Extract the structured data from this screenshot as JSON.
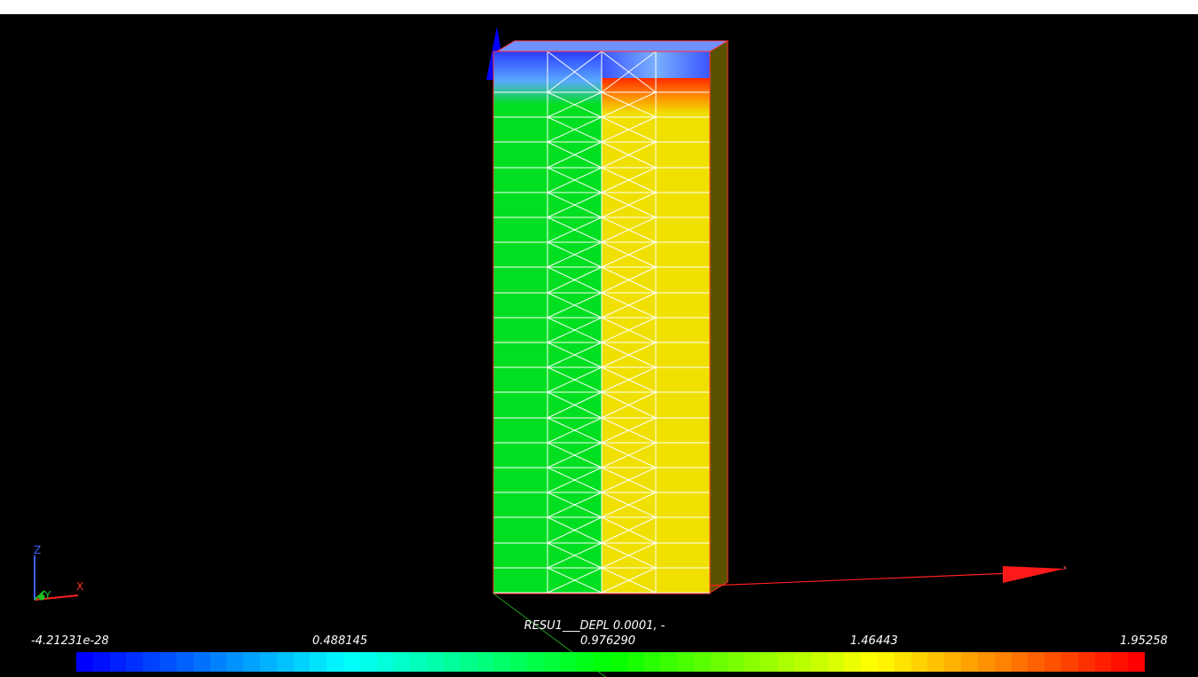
{
  "title": "",
  "scalar_bar": {
    "field_label": "RESU1___DEPL 0.0001, -",
    "ticks": [
      "-4.21231e-28",
      "0.488145",
      "0.976290",
      "1.46443",
      "1.95258"
    ],
    "range": [
      -4.21231e-28,
      1.95258
    ],
    "segments": 64,
    "colormap": "blue-to-red rainbow"
  },
  "axes_widget": {
    "labels": [
      "Z",
      "Y",
      "X"
    ]
  },
  "colors": {
    "background": "#000000",
    "mesh_edges": "#ffffff",
    "low": "#0000ff",
    "mid": "#00ff00",
    "high": "#ff0000",
    "left_face": "#00e020",
    "right_face": "#f0e000"
  }
}
